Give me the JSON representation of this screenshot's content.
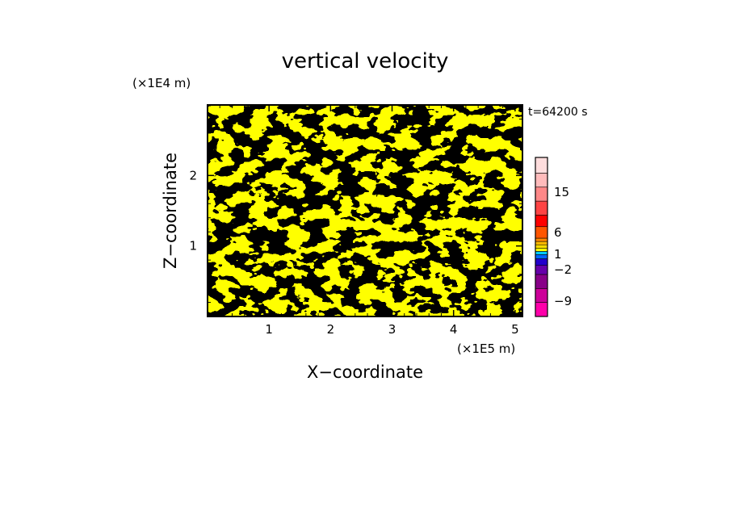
{
  "chart_data": {
    "type": "heatmap",
    "title": "vertical velocity",
    "xlabel": "X−coordinate",
    "ylabel": "Z−coordinate",
    "x_unit": "(×1E5 m)",
    "y_unit": "(×1E4 m)",
    "time_label": "t=64200 s",
    "xlim": [
      0,
      5.12
    ],
    "ylim": [
      0,
      3.0
    ],
    "x_ticks": [
      "1",
      "2",
      "3",
      "4",
      "5"
    ],
    "y_ticks": [
      "1",
      "2"
    ],
    "field_colors": {
      "positive": "#ffff00",
      "negative": "#00eeff"
    },
    "colorbar": {
      "levels": [
        "#ff00aa",
        "#cc0099",
        "#880088",
        "#6600aa",
        "#2200cc",
        "#0066ff",
        "#00ccff",
        "#ffff00",
        "#ffdd00",
        "#ffbb00",
        "#ff8800",
        "#ff5500",
        "#ff0000",
        "#ff4444",
        "#ff8888",
        "#ffbbbb",
        "#ffdddd"
      ],
      "labels": [
        {
          "text": "15",
          "value": 15
        },
        {
          "text": "6",
          "value": 6
        },
        {
          "text": "1",
          "value": 1
        },
        {
          "text": "−2",
          "value": -2
        },
        {
          "text": "−9",
          "value": -9
        }
      ]
    }
  }
}
